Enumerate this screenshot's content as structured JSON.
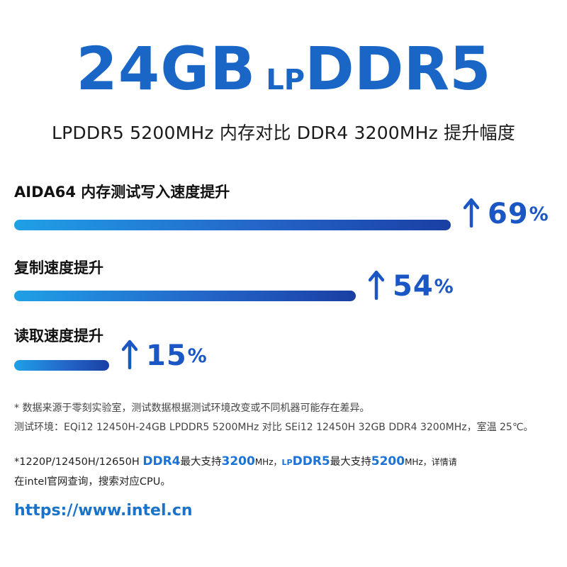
{
  "hero": {
    "capacity": "24GB",
    "prefix": "LP",
    "type": "DDR5"
  },
  "subtitle": "LPDDR5 5200MHz 内存对比 DDR4 3200MHz 提升幅度",
  "chart_data": {
    "type": "bar",
    "orientation": "horizontal",
    "categories": [
      "AIDA64 内存测试写入速度提升",
      "复制速度提升",
      "读取速度提升"
    ],
    "values": [
      69,
      54,
      15
    ],
    "value_labels": [
      "69",
      "54",
      "15"
    ],
    "unit": "%",
    "colors": {
      "bar_start": "#1fa0e6",
      "bar_end": "#1a3fa3",
      "value_text": "#1a57c4"
    }
  },
  "notes": {
    "line1": "* 数据来源于零刻实验室，测试数据根据测试环境改变或不同机器可能存在差异。",
    "line2": "测试环境：EQi12 12450H-24GB LPDDR5 5200MHz 对比 SEi12 12450H 32GB DDR4 3200MHz，室温 25℃。",
    "cpu_line": {
      "pre": "*1220P/12450H/12650H ",
      "ddr4": "DDR4",
      "t1": "最大支持",
      "speed1": "3200",
      "mhz1": "MHz，",
      "lp": "LP",
      "ddr5": "DDR5",
      "t2": "最大支持",
      "speed2": "5200",
      "mhz2": "MHz，详情请"
    },
    "cpu_line2": "在intel官网查询，搜索对应CPU。"
  },
  "url": "https://www.intel.cn"
}
